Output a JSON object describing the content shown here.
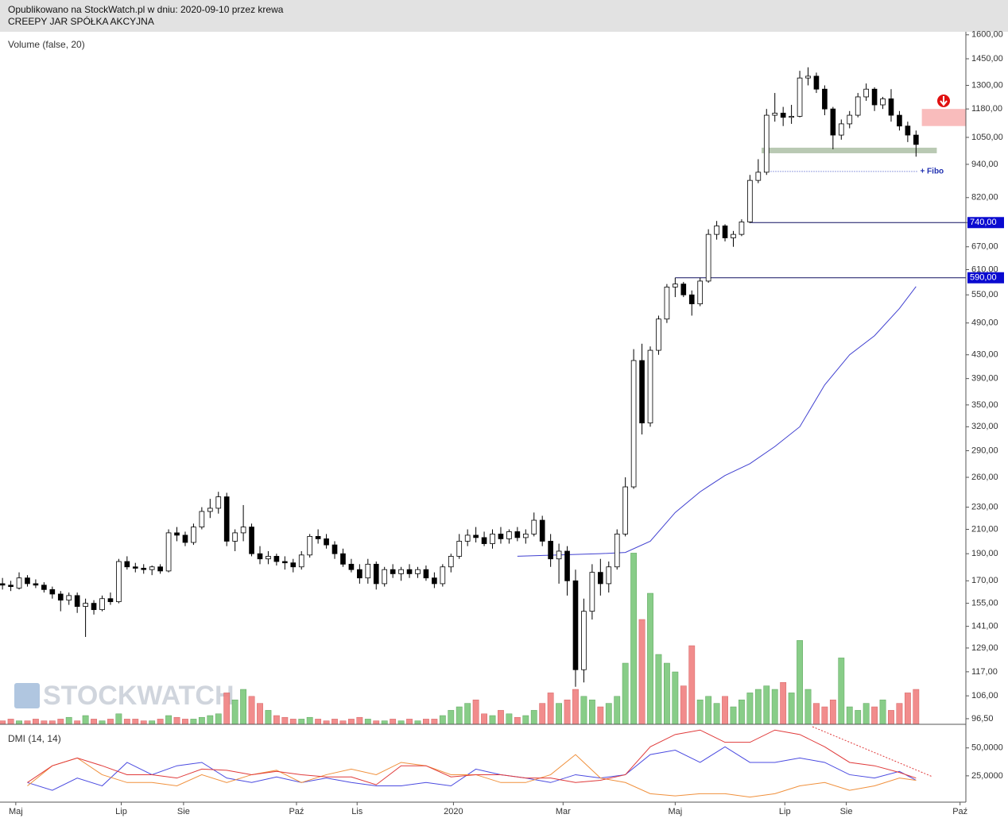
{
  "header": {
    "line1": "Opublikowano na StockWatch.pl w dniu: 2020-09-10 przez krewa",
    "line2": "CREEPY JAR SPÓŁKA AKCYJNA"
  },
  "watermark": "STOCKWATCH",
  "chart_data": [
    {
      "type": "candlestick",
      "log_scale": true,
      "up_color": "#ffffff",
      "down_color": "#000000",
      "xlim": [
        -0.3,
        116
      ],
      "xticks": [
        {
          "value": 1.6,
          "label": "Maj"
        },
        {
          "value": 14.3,
          "label": "Lip"
        },
        {
          "value": 21.8,
          "label": "Sie"
        },
        {
          "value": 35.4,
          "label": "Paź"
        },
        {
          "value": 42.7,
          "label": "Lis"
        },
        {
          "value": 54.3,
          "label": "2020"
        },
        {
          "value": 67.5,
          "label": "Mar"
        },
        {
          "value": 81.0,
          "label": "Maj"
        },
        {
          "value": 94.2,
          "label": "Lip"
        },
        {
          "value": 101.6,
          "label": "Sie"
        },
        {
          "value": 115.3,
          "label": "Paź"
        }
      ],
      "ylim": [
        94.3,
        1620
      ],
      "yticks": [
        {
          "value": 1600,
          "label": "1600,00"
        },
        {
          "value": 1450,
          "label": "1450,00"
        },
        {
          "value": 1300,
          "label": "1300,00"
        },
        {
          "value": 1180,
          "label": "1180,00"
        },
        {
          "value": 1050,
          "label": "1050,00"
        },
        {
          "value": 940,
          "label": "940,00"
        },
        {
          "value": 820,
          "label": "820,00"
        },
        {
          "value": 740,
          "label": "740,00"
        },
        {
          "value": 670,
          "label": "670,00"
        },
        {
          "value": 610,
          "label": "610,00"
        },
        {
          "value": 550,
          "label": "550,00"
        },
        {
          "value": 490,
          "label": "490,00"
        },
        {
          "value": 430,
          "label": "430,00"
        },
        {
          "value": 390,
          "label": "390,00"
        },
        {
          "value": 350,
          "label": "350,00"
        },
        {
          "value": 320,
          "label": "320,00"
        },
        {
          "value": 290,
          "label": "290,00"
        },
        {
          "value": 260,
          "label": "260,00"
        },
        {
          "value": 230,
          "label": "230,00"
        },
        {
          "value": 210,
          "label": "210,00"
        },
        {
          "value": 190,
          "label": "190,00"
        },
        {
          "value": 170,
          "label": "170,00"
        },
        {
          "value": 155,
          "label": "155,00"
        },
        {
          "value": 141,
          "label": "141,00"
        },
        {
          "value": 129,
          "label": "129,00"
        },
        {
          "value": 117,
          "label": "117,00"
        },
        {
          "value": 106,
          "label": "106,00"
        },
        {
          "value": 96.5,
          "label": "96,50"
        }
      ],
      "candles": [
        [
          168,
          172,
          164,
          167
        ],
        [
          167,
          170,
          163,
          166
        ],
        [
          165,
          176,
          164,
          172
        ],
        [
          172,
          174,
          166,
          168
        ],
        [
          168,
          171,
          165,
          167
        ],
        [
          167,
          169,
          162,
          164
        ],
        [
          164,
          166,
          158,
          161
        ],
        [
          161,
          163,
          150,
          157
        ],
        [
          157,
          162,
          154,
          160
        ],
        [
          160,
          162,
          149,
          153
        ],
        [
          153,
          158,
          135,
          155
        ],
        [
          155,
          157,
          148,
          151
        ],
        [
          151,
          160,
          150,
          158
        ],
        [
          158,
          162,
          154,
          156
        ],
        [
          156,
          186,
          155,
          184
        ],
        [
          184,
          188,
          178,
          180
        ],
        [
          180,
          183,
          176,
          179
        ],
        [
          179,
          182,
          175,
          178
        ],
        [
          178,
          181,
          174,
          180
        ],
        [
          180,
          182,
          175,
          177
        ],
        [
          177,
          210,
          176,
          207
        ],
        [
          207,
          212,
          200,
          205
        ],
        [
          205,
          208,
          196,
          199
        ],
        [
          199,
          215,
          197,
          212
        ],
        [
          212,
          230,
          210,
          226
        ],
        [
          226,
          238,
          220,
          229
        ],
        [
          229,
          245,
          224,
          240
        ],
        [
          240,
          244,
          196,
          200
        ],
        [
          200,
          210,
          192,
          207
        ],
        [
          207,
          232,
          200,
          212
        ],
        [
          212,
          215,
          188,
          190
        ],
        [
          190,
          196,
          182,
          186
        ],
        [
          186,
          192,
          182,
          188
        ],
        [
          188,
          190,
          181,
          184
        ],
        [
          184,
          188,
          178,
          183
        ],
        [
          183,
          186,
          176,
          180
        ],
        [
          180,
          192,
          178,
          189
        ],
        [
          189,
          206,
          187,
          204
        ],
        [
          204,
          210,
          198,
          202
        ],
        [
          202,
          206,
          194,
          197
        ],
        [
          197,
          200,
          186,
          190
        ],
        [
          190,
          194,
          180,
          182
        ],
        [
          182,
          186,
          176,
          178
        ],
        [
          178,
          182,
          168,
          172
        ],
        [
          172,
          186,
          168,
          182
        ],
        [
          182,
          184,
          164,
          168
        ],
        [
          168,
          180,
          166,
          178
        ],
        [
          178,
          182,
          172,
          175
        ],
        [
          175,
          180,
          170,
          178
        ],
        [
          178,
          182,
          172,
          175
        ],
        [
          175,
          180,
          172,
          178
        ],
        [
          178,
          181,
          170,
          172
        ],
        [
          172,
          176,
          165,
          168
        ],
        [
          168,
          182,
          166,
          180
        ],
        [
          180,
          190,
          176,
          188
        ],
        [
          188,
          206,
          186,
          200
        ],
        [
          200,
          210,
          196,
          205
        ],
        [
          205,
          212,
          199,
          203
        ],
        [
          203,
          208,
          196,
          198
        ],
        [
          198,
          210,
          194,
          206
        ],
        [
          206,
          212,
          198,
          202
        ],
        [
          202,
          210,
          198,
          208
        ],
        [
          208,
          212,
          200,
          203
        ],
        [
          203,
          210,
          198,
          206
        ],
        [
          206,
          225,
          204,
          218
        ],
        [
          218,
          222,
          196,
          200
        ],
        [
          200,
          206,
          180,
          186
        ],
        [
          186,
          198,
          168,
          192
        ],
        [
          192,
          196,
          160,
          170
        ],
        [
          170,
          178,
          110,
          118
        ],
        [
          118,
          158,
          112,
          150
        ],
        [
          150,
          182,
          145,
          176
        ],
        [
          176,
          186,
          160,
          168
        ],
        [
          168,
          184,
          162,
          180
        ],
        [
          180,
          210,
          178,
          206
        ],
        [
          206,
          260,
          204,
          250
        ],
        [
          250,
          440,
          248,
          420
        ],
        [
          420,
          450,
          310,
          325
        ],
        [
          325,
          445,
          320,
          438
        ],
        [
          438,
          505,
          430,
          498
        ],
        [
          498,
          575,
          490,
          568
        ],
        [
          568,
          590,
          545,
          575
        ],
        [
          575,
          580,
          545,
          550
        ],
        [
          550,
          560,
          505,
          530
        ],
        [
          530,
          590,
          525,
          582
        ],
        [
          582,
          720,
          578,
          705
        ],
        [
          705,
          745,
          690,
          730
        ],
        [
          730,
          735,
          685,
          695
        ],
        [
          695,
          715,
          670,
          705
        ],
        [
          705,
          750,
          700,
          742
        ],
        [
          742,
          900,
          738,
          880
        ],
        [
          880,
          960,
          870,
          910
        ],
        [
          910,
          1180,
          900,
          1150
        ],
        [
          1150,
          1260,
          1120,
          1160
        ],
        [
          1160,
          1190,
          1100,
          1140
        ],
        [
          1140,
          1200,
          1110,
          1145
        ],
        [
          1145,
          1380,
          1140,
          1340
        ],
        [
          1340,
          1400,
          1300,
          1350
        ],
        [
          1350,
          1370,
          1260,
          1280
        ],
        [
          1280,
          1300,
          1150,
          1180
        ],
        [
          1180,
          1190,
          1000,
          1060
        ],
        [
          1060,
          1130,
          1040,
          1110
        ],
        [
          1110,
          1170,
          1090,
          1150
        ],
        [
          1150,
          1260,
          1140,
          1240
        ],
        [
          1240,
          1310,
          1220,
          1280
        ],
        [
          1280,
          1290,
          1170,
          1200
        ],
        [
          1200,
          1240,
          1180,
          1230
        ],
        [
          1230,
          1280,
          1120,
          1150
        ],
        [
          1150,
          1170,
          1080,
          1100
        ],
        [
          1100,
          1120,
          1030,
          1060
        ],
        [
          1060,
          1080,
          970,
          1020
        ]
      ],
      "volume": {
        "name": "Volume (false, 20)",
        "ylim": [
          0,
          100
        ],
        "up_color": "#7cc87c",
        "down_color": "#f08080",
        "values": [
          2,
          3,
          2,
          2,
          3,
          2,
          2,
          3,
          4,
          2,
          5,
          3,
          2,
          3,
          6,
          3,
          3,
          2,
          2,
          3,
          5,
          4,
          3,
          3,
          4,
          5,
          6,
          18,
          14,
          20,
          16,
          12,
          8,
          5,
          4,
          3,
          3,
          4,
          3,
          2,
          3,
          2,
          3,
          4,
          3,
          2,
          2,
          3,
          2,
          3,
          2,
          3,
          3,
          5,
          8,
          10,
          12,
          14,
          6,
          5,
          8,
          6,
          4,
          5,
          8,
          12,
          18,
          12,
          14,
          20,
          16,
          14,
          10,
          12,
          16,
          35,
          98,
          60,
          75,
          40,
          35,
          30,
          22,
          45,
          14,
          16,
          12,
          16,
          10,
          14,
          18,
          20,
          22,
          20,
          24,
          18,
          48,
          20,
          12,
          10,
          14,
          38,
          10,
          8,
          12,
          10,
          14,
          8,
          12,
          18,
          20
        ]
      },
      "ma": {
        "color": "#4040d0",
        "x": [
          62,
          67,
          72,
          75,
          78,
          81,
          84,
          87,
          90,
          93,
          96,
          99,
          102,
          105,
          108,
          110
        ],
        "values": [
          188,
          189,
          190,
          191,
          200,
          225,
          245,
          262,
          275,
          295,
          320,
          380,
          430,
          465,
          520,
          569
        ]
      },
      "levels": [
        {
          "value": 740,
          "label": "740,00",
          "from": 90.1
        },
        {
          "value": 590,
          "label": "590,00",
          "from": 81.0
        }
      ],
      "level_color": "#0a0ad0",
      "fibo": {
        "value": 913,
        "label": "+ Fibo",
        "from": 92.5,
        "to": 110.3
      },
      "support_zone": {
        "value": 995,
        "from": 91.4,
        "to": 112.5
      },
      "resistance_zone": {
        "low": 1100,
        "high": 1180,
        "from": 110.7
      }
    },
    {
      "type": "line",
      "title": "DMI (14, 14)",
      "xlim": [
        -0.3,
        116
      ],
      "ylim": [
        0,
        69
      ],
      "yticks": [
        {
          "value": 50,
          "label": "50,0000"
        },
        {
          "value": 25,
          "label": "25,0000"
        }
      ],
      "x": [
        3,
        6,
        9,
        12,
        15,
        18,
        21,
        24,
        27,
        30,
        33,
        36,
        39,
        42,
        45,
        48,
        51,
        54,
        57,
        60,
        63,
        66,
        69,
        72,
        75,
        78,
        81,
        84,
        87,
        90,
        93,
        96,
        99,
        102,
        105,
        108,
        110
      ],
      "series": [
        {
          "color": "#4a4ae0",
          "values": [
            19,
            12,
            23,
            16,
            37,
            26,
            34,
            37,
            23,
            19,
            24,
            19,
            23,
            19,
            16,
            16,
            19,
            16,
            31,
            26,
            23,
            19,
            26,
            23,
            26,
            44,
            48,
            37,
            51,
            37,
            37,
            41,
            37,
            26,
            23,
            29,
            21
          ]
        },
        {
          "color": "#f0903c",
          "values": [
            16,
            34,
            41,
            26,
            19,
            19,
            16,
            26,
            19,
            26,
            30,
            19,
            26,
            31,
            26,
            37,
            34,
            26,
            26,
            19,
            19,
            26,
            44,
            23,
            19,
            9,
            7,
            9,
            9,
            6,
            9,
            16,
            19,
            12,
            16,
            23,
            21
          ]
        },
        {
          "color": "#e03a3a",
          "values": [
            19,
            34,
            41,
            34,
            26,
            26,
            23,
            31,
            30,
            26,
            29,
            26,
            24,
            24,
            17,
            34,
            34,
            24,
            26,
            26,
            23,
            23,
            19,
            21,
            26,
            51,
            62,
            66,
            55,
            55,
            66,
            62,
            51,
            37,
            34,
            28,
            23
          ]
        }
      ]
    }
  ]
}
